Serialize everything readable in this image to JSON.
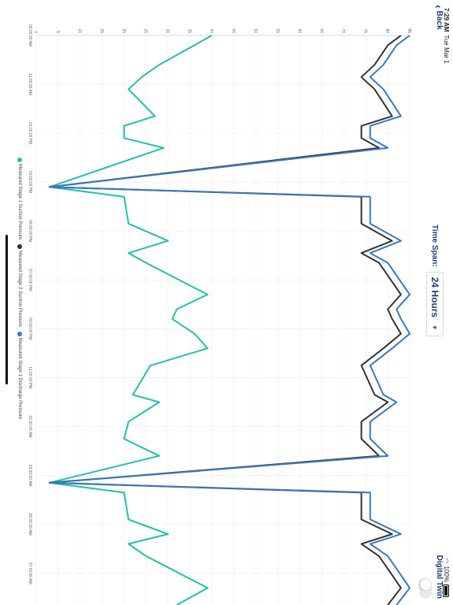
{
  "status_bar": {
    "time": "7:29 AM",
    "date": "Tue Mar 1",
    "battery": "100%"
  },
  "nav": {
    "back_label": "Back",
    "timespan_label": "Time Span:",
    "timespan_value": "24 Hours",
    "digital_twin_label": "Digital Twin"
  },
  "colors": {
    "stage1_suction": "#1fc0ae",
    "stage2_suction": "#333333",
    "stage1_discharge": "#3a78bf",
    "brand_text": "#1f3d78"
  },
  "chart_data": {
    "type": "line",
    "title": "",
    "xlabel": "",
    "ylabel": "",
    "ylim": [
      0,
      85
    ],
    "y_ticks": [
      0,
      5,
      10,
      15,
      20,
      25,
      30,
      35,
      40,
      45,
      50,
      55,
      60,
      65,
      70,
      75,
      80,
      85
    ],
    "x_ticks": [
      "09:00:00 AM",
      "11:00:00 AM",
      "01:00:00 PM",
      "03:00:00 PM",
      "05:00:00 PM",
      "07:00:00 PM",
      "09:00:00 PM",
      "11:00:00 PM",
      "01:00:00 AM",
      "03:00:00 AM",
      "05:00:00 AM",
      "07:00:00 AM"
    ],
    "x_range": [
      0,
      23.3
    ],
    "grid": true,
    "legend_position": "bottom",
    "series": [
      {
        "name": "Measured Stage 1 Suction Pressure",
        "x": [
          0,
          1.2,
          1.7,
          2.2,
          3.3,
          3.7,
          4.2,
          4.6,
          6.2,
          6.6,
          7.7,
          8.4,
          8.9,
          9.3,
          10.6,
          11.2,
          11.6,
          12.2,
          12.8,
          13.5,
          14.7,
          15.0,
          15.8,
          16.5,
          17.2,
          18.3,
          18.7,
          19.8,
          20.4,
          20.8,
          21.3,
          22.6,
          23.3
        ],
        "values": [
          40,
          28,
          24,
          21,
          27,
          20,
          20,
          29,
          3,
          20,
          21,
          30,
          21,
          25,
          39,
          32,
          31,
          36,
          39,
          26,
          22,
          28,
          21,
          20,
          28,
          3,
          20,
          21,
          30,
          21,
          25,
          39,
          32
        ]
      },
      {
        "name": "Measured Stage 2 Suction Pressure",
        "x": [
          0,
          0.4,
          1.2,
          1.7,
          2.2,
          3.3,
          3.7,
          4.2,
          4.6,
          6.2,
          6.6,
          7.7,
          8.4,
          8.9,
          9.3,
          10.6,
          11.2,
          11.6,
          12.2,
          12.8,
          13.5,
          14.7,
          15.0,
          15.8,
          16.5,
          17.2,
          18.3,
          18.7,
          19.8,
          20.4,
          20.8,
          21.3,
          22.6,
          23.3
        ],
        "values": [
          83,
          80,
          77,
          74,
          77,
          81,
          74,
          74,
          78,
          3,
          74,
          74,
          81,
          74,
          78,
          83,
          80,
          81,
          83,
          79,
          74,
          77,
          80,
          74,
          74,
          78,
          3,
          74,
          74,
          81,
          74,
          78,
          83,
          80
        ]
      },
      {
        "name": "Measured Stage 1 Discharge Pressure",
        "x": [
          0,
          0.4,
          1.2,
          1.7,
          2.2,
          3.3,
          3.7,
          4.2,
          4.6,
          6.2,
          6.6,
          7.7,
          8.4,
          8.9,
          9.3,
          10.6,
          11.2,
          11.6,
          12.2,
          12.8,
          13.5,
          14.7,
          15.0,
          15.8,
          16.5,
          17.2,
          18.3,
          18.7,
          19.8,
          20.4,
          20.8,
          21.3,
          22.6,
          23.3
        ],
        "values": [
          85,
          82,
          79,
          76,
          79,
          83,
          76,
          76,
          80,
          3,
          76,
          76,
          83,
          76,
          80,
          85,
          82,
          83,
          85,
          81,
          76,
          79,
          82,
          76,
          76,
          80,
          3,
          76,
          76,
          83,
          76,
          80,
          85,
          82
        ]
      }
    ]
  }
}
